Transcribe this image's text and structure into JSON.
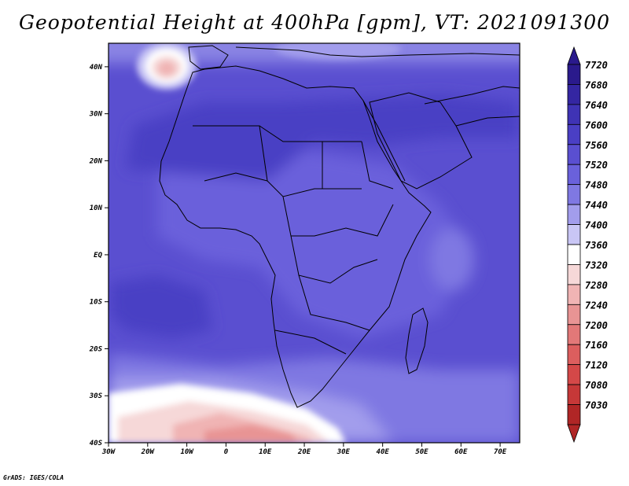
{
  "title": "Geopotential Height at 400hPa [gpm], VT: 2021091300",
  "credit": "GrADS: IGES/COLA",
  "axes": {
    "lon_ticks": [
      {
        "value": -30,
        "label": "30W"
      },
      {
        "value": -20,
        "label": "20W"
      },
      {
        "value": -10,
        "label": "10W"
      },
      {
        "value": 0,
        "label": "0"
      },
      {
        "value": 10,
        "label": "10E"
      },
      {
        "value": 20,
        "label": "20E"
      },
      {
        "value": 30,
        "label": "30E"
      },
      {
        "value": 40,
        "label": "40E"
      },
      {
        "value": 50,
        "label": "50E"
      },
      {
        "value": 60,
        "label": "60E"
      },
      {
        "value": 70,
        "label": "70E"
      }
    ],
    "lat_ticks": [
      {
        "value": 40,
        "label": "40N"
      },
      {
        "value": 30,
        "label": "30N"
      },
      {
        "value": 20,
        "label": "20N"
      },
      {
        "value": 10,
        "label": "10N"
      },
      {
        "value": 0,
        "label": "EQ"
      },
      {
        "value": -10,
        "label": "10S"
      },
      {
        "value": -20,
        "label": "20S"
      },
      {
        "value": -30,
        "label": "30S"
      },
      {
        "value": -40,
        "label": "40S"
      }
    ]
  },
  "colorbar": {
    "levels": [
      {
        "label": "7720",
        "color": "#2a1a8c"
      },
      {
        "label": "7680",
        "color": "#3426a2"
      },
      {
        "label": "7640",
        "color": "#3f33b5"
      },
      {
        "label": "7600",
        "color": "#4a3fc4"
      },
      {
        "label": "7560",
        "color": "#5a4fd0"
      },
      {
        "label": "7520",
        "color": "#6a61db"
      },
      {
        "label": "7480",
        "color": "#7f78e2"
      },
      {
        "label": "7440",
        "color": "#a29dec"
      },
      {
        "label": "7400",
        "color": "#c9c6f5"
      },
      {
        "label": "7360",
        "color": "#ffffff"
      },
      {
        "label": "7320",
        "color": "#f6d8d8"
      },
      {
        "label": "7280",
        "color": "#f0b4b4"
      },
      {
        "label": "7240",
        "color": "#e89494"
      },
      {
        "label": "7200",
        "color": "#e27878"
      },
      {
        "label": "7160",
        "color": "#dc5e5e"
      },
      {
        "label": "7120",
        "color": "#d44848"
      },
      {
        "label": "7080",
        "color": "#c63838"
      },
      {
        "label": "7030",
        "color": "#b02626"
      }
    ]
  }
}
